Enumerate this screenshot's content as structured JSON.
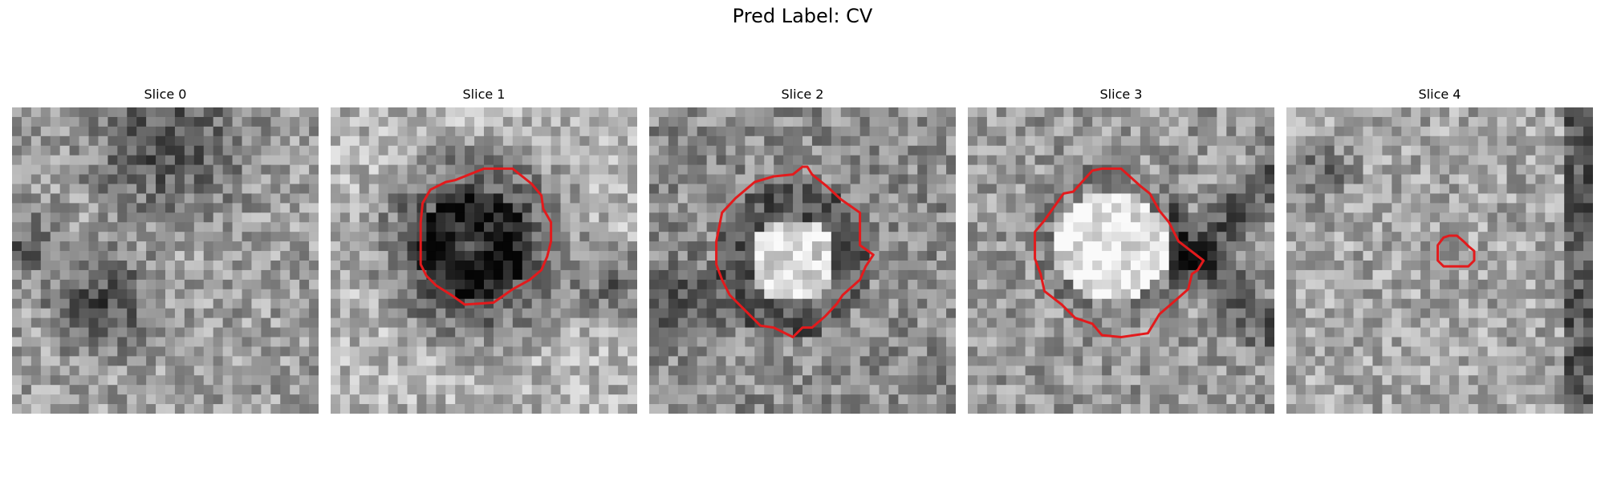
{
  "figure": {
    "title": "Pred Label: CV"
  },
  "slices": [
    {
      "title": "Slice 0",
      "has_contour": false
    },
    {
      "title": "Slice 1",
      "has_contour": true
    },
    {
      "title": "Slice 2",
      "has_contour": true
    },
    {
      "title": "Slice 3",
      "has_contour": true
    },
    {
      "title": "Slice 4",
      "has_contour": true
    }
  ],
  "contour_color": "#e31a1c",
  "colormap": "gray"
}
